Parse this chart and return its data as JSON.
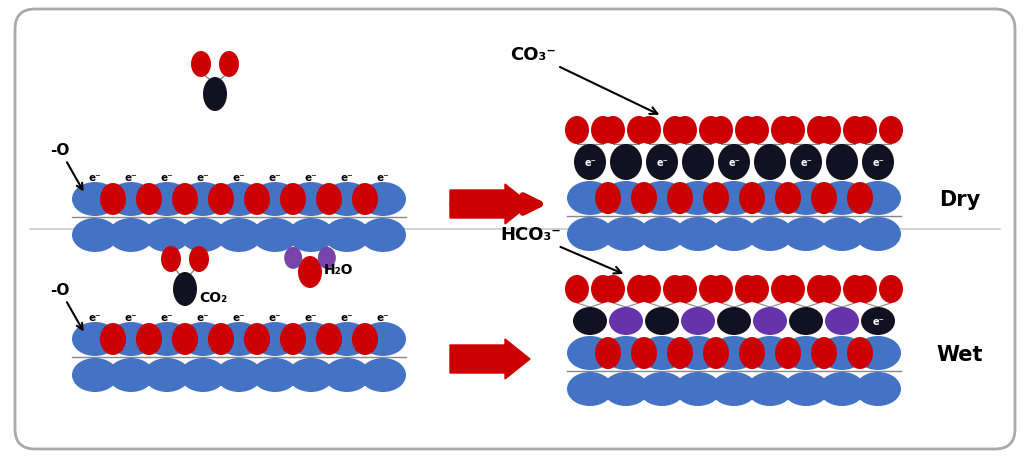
{
  "blue": "#4472C4",
  "red": "#CC0000",
  "dark": "#111122",
  "purple": "#7744aa",
  "black_purple": "#330066",
  "arrow_red": "#CC0000",
  "label_dry": "Dry",
  "label_wet": "Wet",
  "label_co3": "CO₃⁻",
  "label_hco3": "HCO₃⁻",
  "label_co2": "CO₂",
  "label_h2o": "H₂O",
  "label_minus_o": "-O",
  "label_eminus": "e⁻"
}
